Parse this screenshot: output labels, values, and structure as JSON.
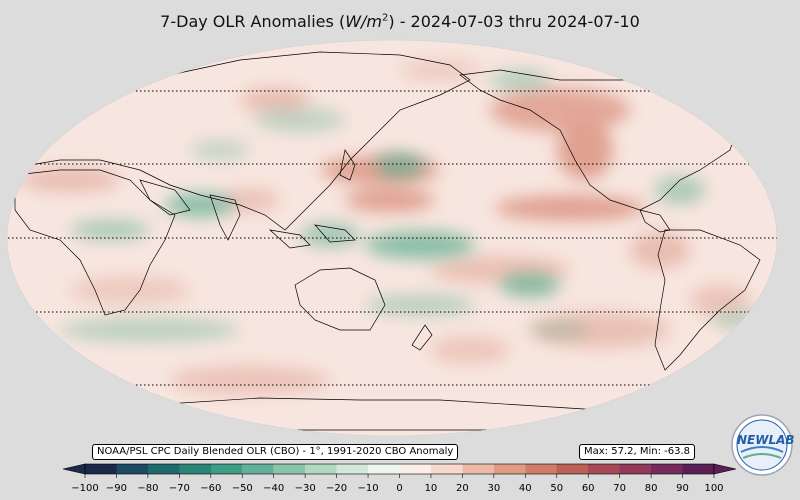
{
  "title": {
    "prefix": "7-Day OLR Anomalies (",
    "unit_var": "W/m",
    "unit_exp": "2",
    "suffix": ") - 2024-07-03 thru 2024-07-10"
  },
  "source_label": "NOAA/PSL CPC Daily Blended OLR (CBO) - 1°, 1991-2020 CBO Anomaly",
  "stats_label": "Max: 57.2,  Min: -63.8",
  "colorbar": {
    "ticks": [
      "−100",
      "−90",
      "−80",
      "−70",
      "−60",
      "−50",
      "−40",
      "−30",
      "−20",
      "−10",
      "0",
      "10",
      "20",
      "30",
      "40",
      "50",
      "60",
      "70",
      "80",
      "90",
      "100"
    ],
    "colors": [
      "#1b2a4a",
      "#1d4b64",
      "#1f6a6e",
      "#2b8577",
      "#3f9d86",
      "#62b09a",
      "#8cc4ab",
      "#b3d8c2",
      "#d4e8da",
      "#eef5ef",
      "#fbeee9",
      "#f6d8cc",
      "#ecbba8",
      "#df9b84",
      "#cf7c68",
      "#bc6158",
      "#a74a55",
      "#913a5a",
      "#772b5c",
      "#5a1f55"
    ]
  },
  "logo_text": "NEWLAB",
  "map_colors": {
    "ocean_base": "#f7e4dc",
    "positive": "#d98a78",
    "negative": "#8cc4ab"
  }
}
